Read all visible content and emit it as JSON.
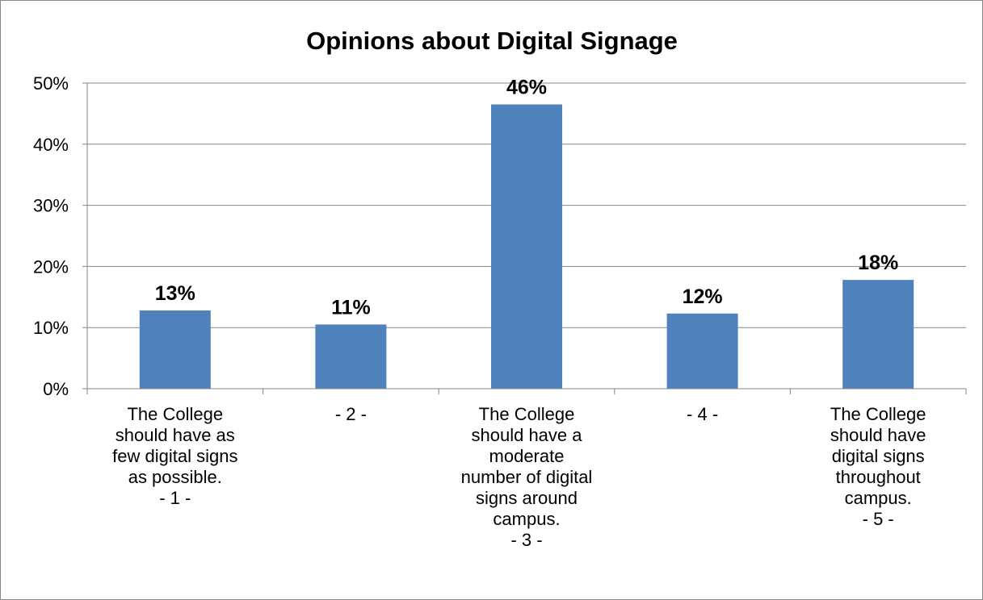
{
  "chart_data": {
    "type": "bar",
    "title": "Opinions about Digital Signage",
    "xlabel": "",
    "ylabel": "",
    "categories": [
      [
        "The College",
        "should have as",
        "few digital signs",
        "as possible.",
        "- 1 -"
      ],
      [
        "- 2 -"
      ],
      [
        "The College",
        "should have a",
        "moderate",
        "number of digital",
        "signs around",
        "campus.",
        "- 3 -"
      ],
      [
        "- 4 -"
      ],
      [
        "The College",
        "should have",
        "digital signs",
        "throughout",
        "campus.",
        "- 5 -"
      ]
    ],
    "values": [
      0.128,
      0.105,
      0.465,
      0.123,
      0.178
    ],
    "data_labels": [
      "13%",
      "11%",
      "46%",
      "12%",
      "18%"
    ],
    "y_ticks": [
      0,
      0.1,
      0.2,
      0.3,
      0.4,
      0.5
    ],
    "y_tick_labels": [
      "0%",
      "10%",
      "20%",
      "30%",
      "40%",
      "50%"
    ],
    "ylim": [
      0,
      0.5
    ],
    "grid": true,
    "legend": "none",
    "bar_color": "#4F81BD",
    "gridline_color": "#868686"
  }
}
